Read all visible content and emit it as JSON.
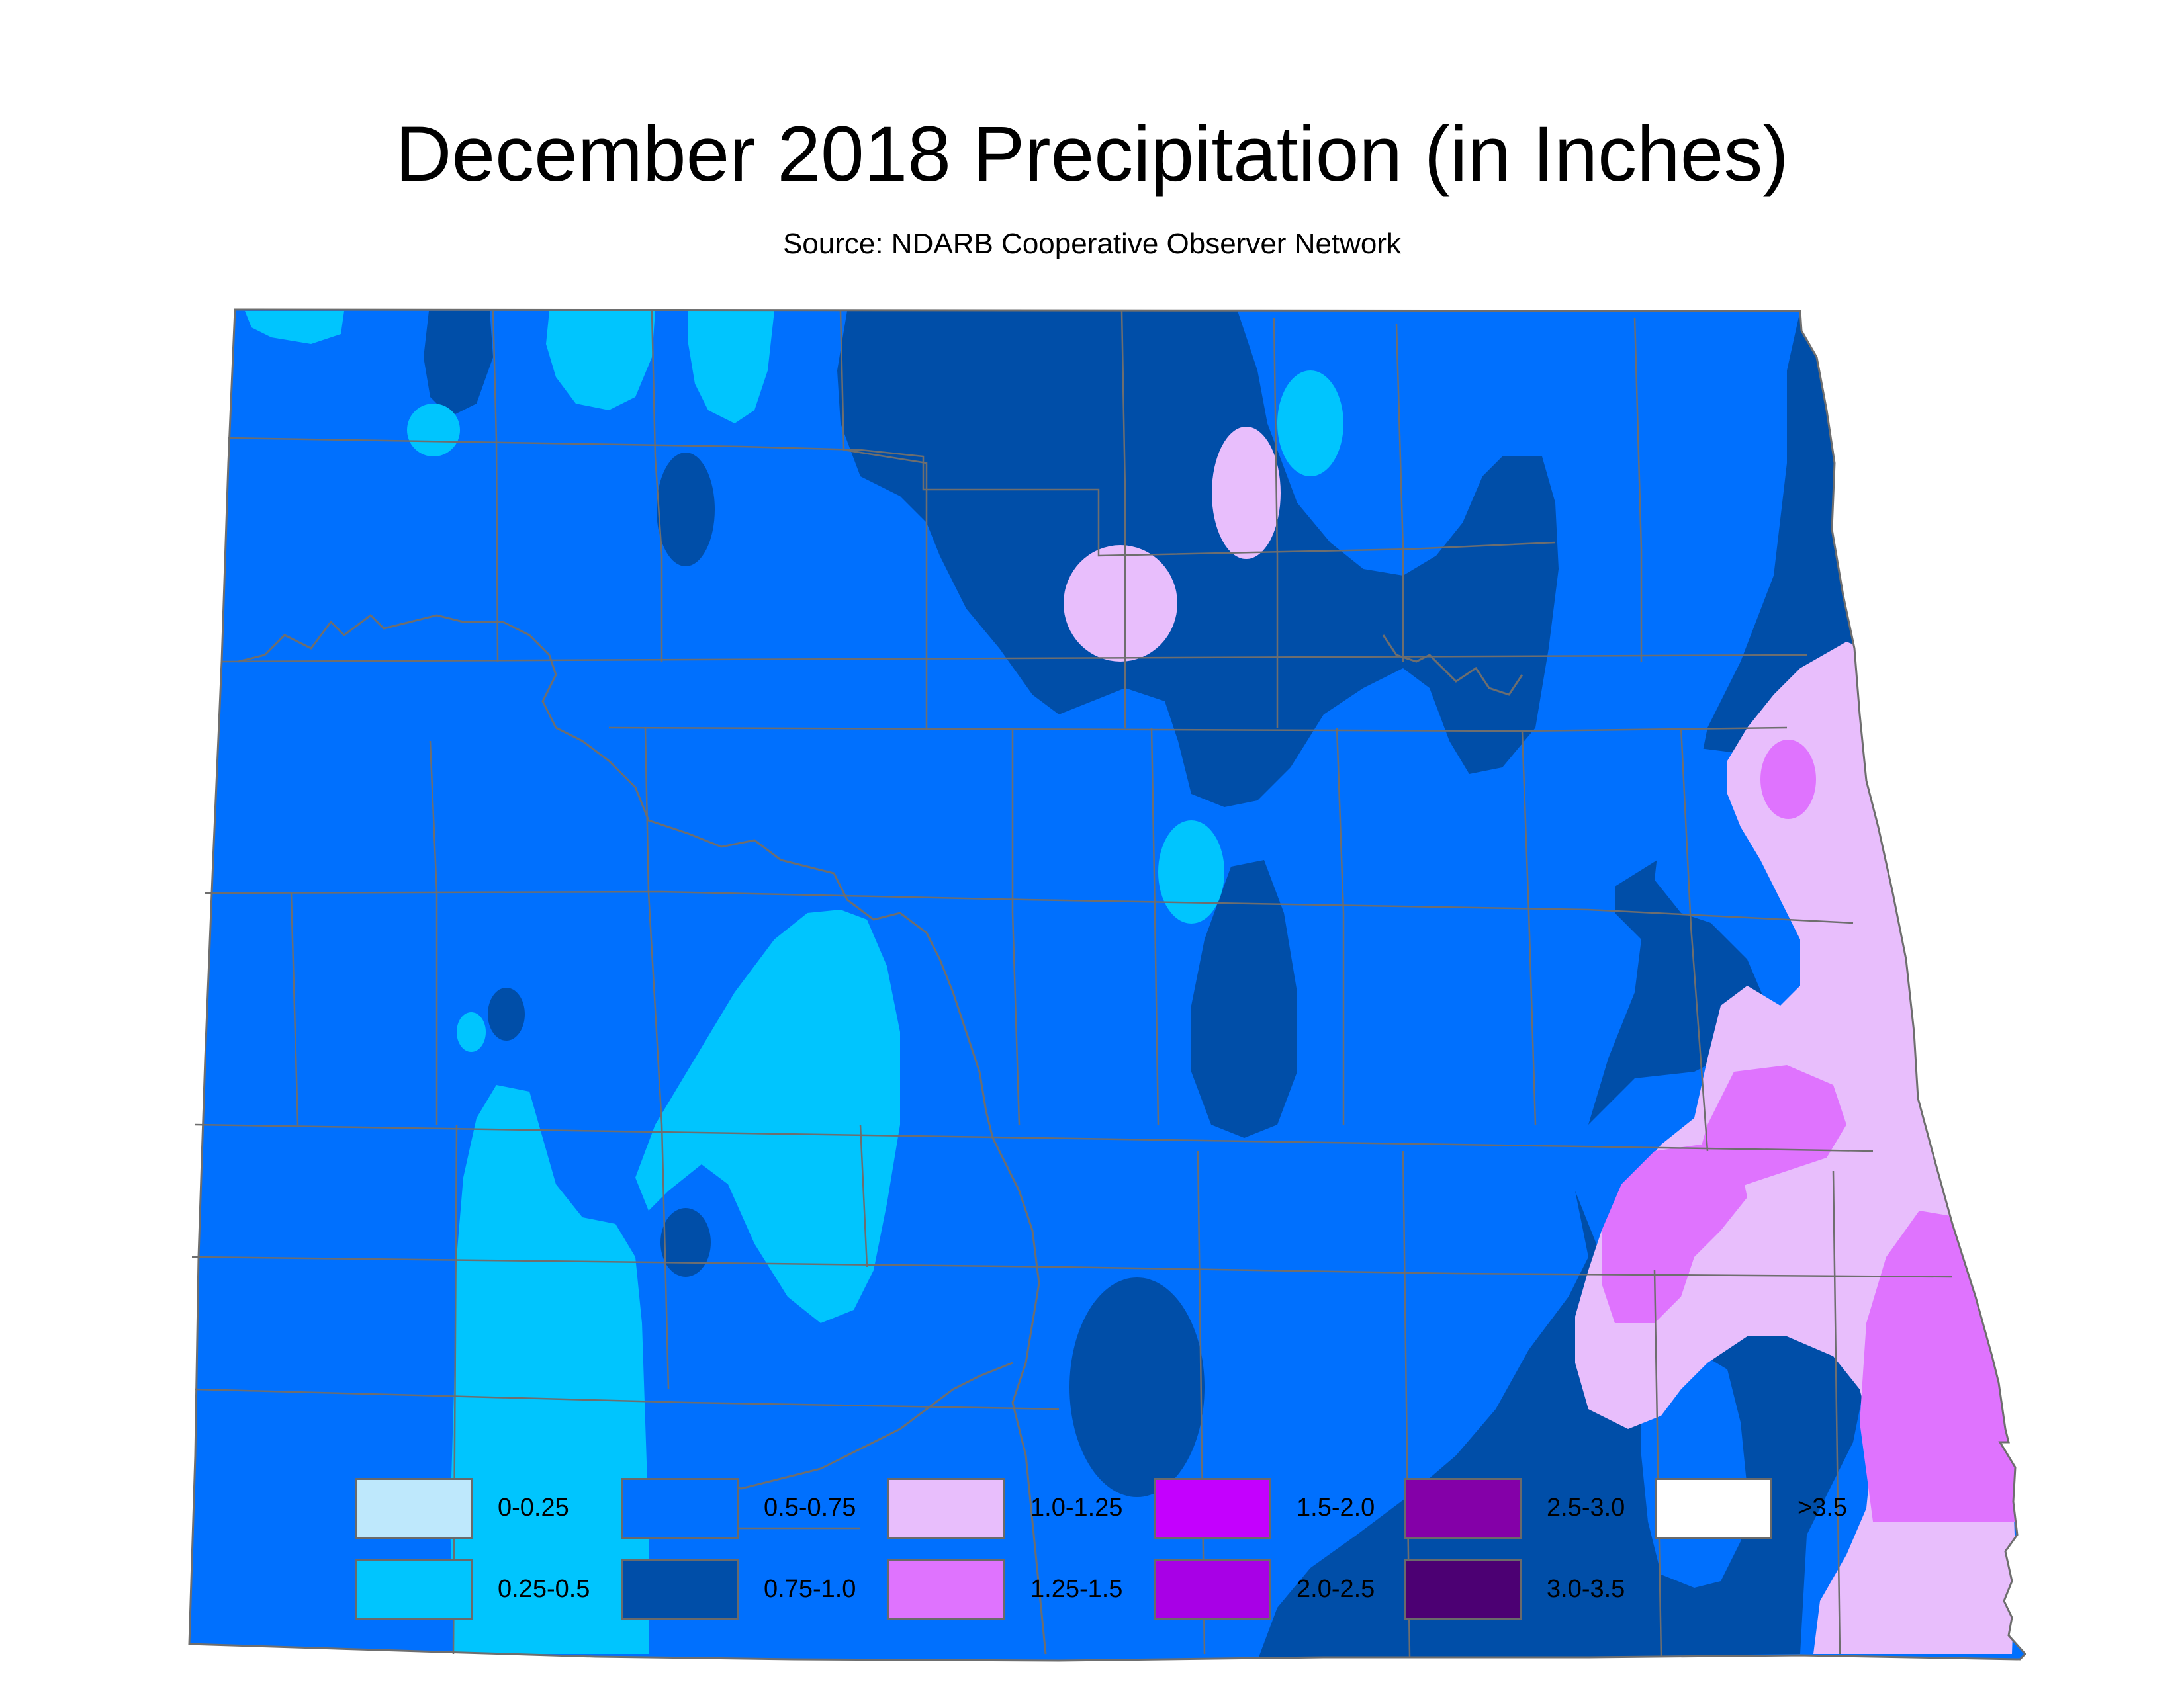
{
  "title": "December 2018 Precipitation (in Inches)",
  "subtitle": "Source: NDARB Cooperative Observer Network",
  "colors": {
    "background": "#ffffff",
    "county_line": "#6e6e6e",
    "river_line": "#6e6e6e"
  },
  "legend": [
    {
      "label": "0-0.25",
      "color": "#bee8fc"
    },
    {
      "label": "0.25-0.5",
      "color": "#00c5fe"
    },
    {
      "label": "0.5-0.75",
      "color": "#0070fe"
    },
    {
      "label": "0.75-1.0",
      "color": "#004ea8"
    },
    {
      "label": "1.0-1.25",
      "color": "#e8befc"
    },
    {
      "label": "1.25-1.5",
      "color": "#df73fe"
    },
    {
      "label": "1.5-2.0",
      "color": "#c400fe"
    },
    {
      "label": "2.0-2.5",
      "color": "#a800e6"
    },
    {
      "label": "2.5-3.0",
      "color": "#8400a8"
    },
    {
      "label": "3.0-3.5",
      "color": "#4c0073"
    },
    {
      "label": ">3.5",
      "color": "#ffffff"
    }
  ]
}
